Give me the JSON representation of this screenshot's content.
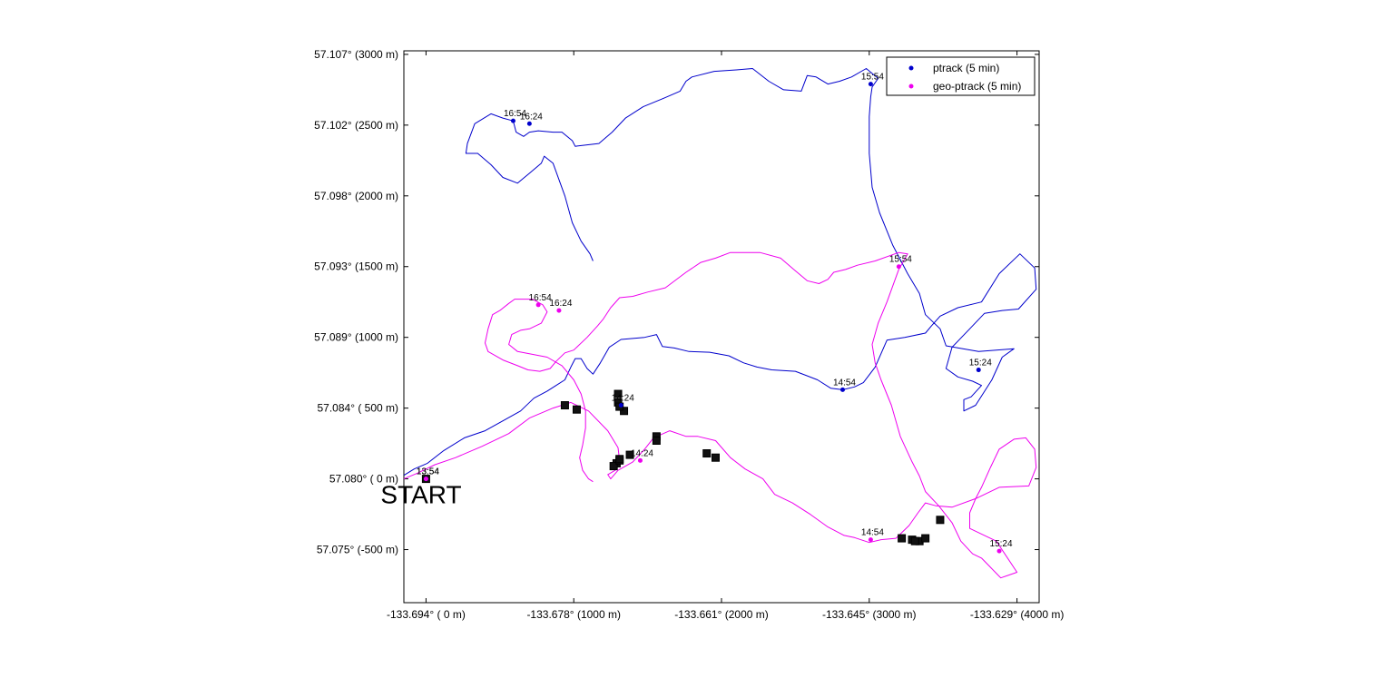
{
  "chart_data": {
    "type": "line",
    "xlim": [
      -150,
      4150
    ],
    "ylim": [
      -875,
      3025
    ],
    "x_ticks": [
      {
        "value": 0,
        "label": "-133.694° (   0 m)"
      },
      {
        "value": 1000,
        "label": "-133.678° (1000 m)"
      },
      {
        "value": 2000,
        "label": "-133.661° (2000 m)"
      },
      {
        "value": 3000,
        "label": "-133.645° (3000 m)"
      },
      {
        "value": 4000,
        "label": "-133.629° (4000 m)"
      }
    ],
    "y_ticks": [
      {
        "value": 3000,
        "label": "57.107° (3000 m)"
      },
      {
        "value": 2500,
        "label": "57.102° (2500 m)"
      },
      {
        "value": 2000,
        "label": "57.098° (2000 m)"
      },
      {
        "value": 1500,
        "label": "57.093° (1500 m)"
      },
      {
        "value": 1000,
        "label": "57.089° (1000 m)"
      },
      {
        "value": 500,
        "label": "57.084° ( 500 m)"
      },
      {
        "value": 0,
        "label": "57.080° (   0 m)"
      },
      {
        "value": -500,
        "label": "57.075° (-500 m)"
      }
    ],
    "legend_position": "top-right",
    "start_label": "START",
    "start_point": {
      "x": 0,
      "y": 0
    },
    "series": [
      {
        "name": "ptrack (5 min)",
        "color": "#0000cc",
        "path": [
          [
            -150,
            25
          ],
          [
            -80,
            70
          ],
          [
            10,
            110
          ],
          [
            120,
            200
          ],
          [
            260,
            290
          ],
          [
            400,
            340
          ],
          [
            520,
            410
          ],
          [
            640,
            480
          ],
          [
            730,
            570
          ],
          [
            820,
            620
          ],
          [
            880,
            660
          ],
          [
            940,
            700
          ],
          [
            980,
            790
          ],
          [
            1010,
            850
          ],
          [
            1050,
            850
          ],
          [
            1090,
            780
          ],
          [
            1130,
            740
          ],
          [
            1180,
            820
          ],
          [
            1240,
            930
          ],
          [
            1320,
            985
          ],
          [
            1480,
            1000
          ],
          [
            1560,
            1020
          ],
          [
            1600,
            935
          ],
          [
            1680,
            925
          ],
          [
            1780,
            900
          ],
          [
            1920,
            895
          ],
          [
            2050,
            870
          ],
          [
            2150,
            820
          ],
          [
            2240,
            790
          ],
          [
            2340,
            770
          ],
          [
            2500,
            760
          ],
          [
            2650,
            700
          ],
          [
            2740,
            640
          ],
          [
            2820,
            630
          ],
          [
            2900,
            650
          ],
          [
            2960,
            680
          ],
          [
            3040,
            790
          ],
          [
            3120,
            980
          ],
          [
            3240,
            1000
          ],
          [
            3380,
            1030
          ],
          [
            3420,
            1080
          ],
          [
            3480,
            1150
          ],
          [
            3600,
            1210
          ],
          [
            3760,
            1250
          ],
          [
            3880,
            1450
          ],
          [
            4020,
            1590
          ],
          [
            4120,
            1490
          ],
          [
            4130,
            1340
          ],
          [
            4010,
            1200
          ],
          [
            3900,
            1190
          ],
          [
            3780,
            1170
          ],
          [
            3680,
            1060
          ],
          [
            3560,
            930
          ],
          [
            3520,
            780
          ],
          [
            3600,
            720
          ],
          [
            3700,
            690
          ],
          [
            3760,
            660
          ],
          [
            3690,
            580
          ],
          [
            3640,
            560
          ],
          [
            3640,
            480
          ],
          [
            3720,
            520
          ],
          [
            3830,
            700
          ],
          [
            3900,
            860
          ],
          [
            3980,
            920
          ],
          [
            3740,
            900
          ],
          [
            3520,
            940
          ],
          [
            3480,
            1060
          ],
          [
            3380,
            1160
          ],
          [
            3340,
            1310
          ],
          [
            3260,
            1450
          ],
          [
            3160,
            1650
          ],
          [
            3070,
            1880
          ],
          [
            3020,
            2060
          ],
          [
            3000,
            2300
          ],
          [
            3000,
            2560
          ],
          [
            3010,
            2700
          ],
          [
            3020,
            2770
          ],
          [
            3060,
            2830
          ],
          [
            2980,
            2900
          ],
          [
            2880,
            2840
          ],
          [
            2800,
            2810
          ],
          [
            2720,
            2790
          ],
          [
            2640,
            2840
          ],
          [
            2580,
            2850
          ],
          [
            2540,
            2740
          ],
          [
            2420,
            2750
          ],
          [
            2320,
            2810
          ],
          [
            2210,
            2900
          ],
          [
            2100,
            2890
          ],
          [
            1950,
            2880
          ],
          [
            1800,
            2840
          ],
          [
            1760,
            2810
          ],
          [
            1720,
            2740
          ],
          [
            1610,
            2690
          ],
          [
            1470,
            2630
          ],
          [
            1350,
            2550
          ],
          [
            1260,
            2450
          ],
          [
            1170,
            2370
          ],
          [
            1010,
            2350
          ],
          [
            990,
            2390
          ],
          [
            920,
            2450
          ],
          [
            860,
            2450
          ],
          [
            760,
            2460
          ],
          [
            700,
            2450
          ],
          [
            660,
            2420
          ],
          [
            610,
            2450
          ],
          [
            590,
            2530
          ],
          [
            520,
            2550
          ],
          [
            440,
            2580
          ],
          [
            330,
            2510
          ],
          [
            280,
            2370
          ],
          [
            270,
            2300
          ],
          [
            350,
            2300
          ],
          [
            440,
            2220
          ],
          [
            520,
            2130
          ],
          [
            620,
            2090
          ],
          [
            700,
            2160
          ],
          [
            780,
            2230
          ],
          [
            800,
            2280
          ],
          [
            860,
            2230
          ],
          [
            940,
            2000
          ],
          [
            990,
            1810
          ],
          [
            1050,
            1680
          ],
          [
            1110,
            1590
          ],
          [
            1130,
            1540
          ]
        ],
        "time_markers": [
          {
            "label": "13:54",
            "x": 0,
            "y": 0
          },
          {
            "label": "14:24",
            "x": 1320,
            "y": 520
          },
          {
            "label": "14:54",
            "x": 2820,
            "y": 630
          },
          {
            "label": "15:24",
            "x": 3740,
            "y": 770
          },
          {
            "label": "15:54",
            "x": 3010,
            "y": 2790
          },
          {
            "label": "16:54",
            "x": 590,
            "y": 2530
          },
          {
            "label": "16:24",
            "x": 700,
            "y": 2510
          }
        ]
      },
      {
        "name": "geo-ptrack (5 min)",
        "color": "#ee00ee",
        "path": [
          [
            -150,
            0
          ],
          [
            -60,
            40
          ],
          [
            60,
            100
          ],
          [
            200,
            150
          ],
          [
            380,
            230
          ],
          [
            560,
            320
          ],
          [
            700,
            430
          ],
          [
            860,
            500
          ],
          [
            980,
            540
          ],
          [
            1100,
            480
          ],
          [
            1230,
            340
          ],
          [
            1300,
            220
          ],
          [
            1310,
            130
          ],
          [
            1280,
            60
          ],
          [
            1230,
            30
          ],
          [
            1250,
            0
          ],
          [
            1300,
            60
          ],
          [
            1400,
            120
          ],
          [
            1480,
            210
          ],
          [
            1540,
            290
          ],
          [
            1650,
            340
          ],
          [
            1760,
            300
          ],
          [
            1840,
            300
          ],
          [
            1960,
            270
          ],
          [
            2060,
            150
          ],
          [
            2160,
            70
          ],
          [
            2280,
            0
          ],
          [
            2360,
            -110
          ],
          [
            2480,
            -170
          ],
          [
            2600,
            -250
          ],
          [
            2720,
            -340
          ],
          [
            2830,
            -400
          ],
          [
            2900,
            -415
          ],
          [
            3000,
            -450
          ],
          [
            3080,
            -430
          ],
          [
            3180,
            -420
          ],
          [
            3270,
            -330
          ],
          [
            3330,
            -240
          ],
          [
            3380,
            -170
          ],
          [
            3450,
            -190
          ],
          [
            3560,
            -200
          ],
          [
            3720,
            -140
          ],
          [
            3880,
            -60
          ],
          [
            4080,
            -50
          ],
          [
            4130,
            80
          ],
          [
            4120,
            210
          ],
          [
            4060,
            290
          ],
          [
            3980,
            280
          ],
          [
            3880,
            210
          ],
          [
            3820,
            80
          ],
          [
            3760,
            -60
          ],
          [
            3720,
            -140
          ],
          [
            3680,
            -240
          ],
          [
            3680,
            -350
          ],
          [
            3860,
            -440
          ],
          [
            4000,
            -660
          ],
          [
            3890,
            -700
          ],
          [
            3760,
            -560
          ],
          [
            3700,
            -530
          ],
          [
            3620,
            -440
          ],
          [
            3560,
            -310
          ],
          [
            3470,
            -190
          ],
          [
            3380,
            -90
          ],
          [
            3340,
            20
          ],
          [
            3290,
            120
          ],
          [
            3210,
            300
          ],
          [
            3150,
            520
          ],
          [
            3080,
            700
          ],
          [
            3040,
            820
          ],
          [
            3020,
            950
          ],
          [
            3060,
            1100
          ],
          [
            3120,
            1250
          ],
          [
            3200,
            1480
          ],
          [
            3260,
            1590
          ],
          [
            3200,
            1600
          ],
          [
            3040,
            1540
          ],
          [
            2920,
            1510
          ],
          [
            2840,
            1480
          ],
          [
            2760,
            1460
          ],
          [
            2720,
            1410
          ],
          [
            2660,
            1380
          ],
          [
            2580,
            1400
          ],
          [
            2500,
            1470
          ],
          [
            2400,
            1560
          ],
          [
            2260,
            1600
          ],
          [
            2160,
            1600
          ],
          [
            2060,
            1600
          ],
          [
            1960,
            1560
          ],
          [
            1860,
            1530
          ],
          [
            1760,
            1460
          ],
          [
            1620,
            1350
          ],
          [
            1500,
            1320
          ],
          [
            1400,
            1290
          ],
          [
            1310,
            1280
          ],
          [
            1250,
            1210
          ],
          [
            1200,
            1130
          ],
          [
            1160,
            1080
          ],
          [
            1090,
            1000
          ],
          [
            1000,
            910
          ],
          [
            940,
            890
          ],
          [
            880,
            830
          ],
          [
            840,
            780
          ],
          [
            770,
            760
          ],
          [
            690,
            770
          ],
          [
            620,
            800
          ],
          [
            520,
            840
          ],
          [
            420,
            900
          ],
          [
            400,
            960
          ],
          [
            420,
            1060
          ],
          [
            450,
            1160
          ],
          [
            500,
            1190
          ],
          [
            560,
            1240
          ],
          [
            600,
            1270
          ],
          [
            720,
            1270
          ],
          [
            790,
            1230
          ],
          [
            820,
            1180
          ],
          [
            780,
            1100
          ],
          [
            700,
            1060
          ],
          [
            640,
            1050
          ],
          [
            580,
            1020
          ],
          [
            560,
            950
          ],
          [
            620,
            900
          ],
          [
            720,
            880
          ],
          [
            820,
            860
          ],
          [
            920,
            800
          ],
          [
            1000,
            700
          ],
          [
            1050,
            600
          ],
          [
            1080,
            480
          ],
          [
            1080,
            360
          ],
          [
            1060,
            240
          ],
          [
            1040,
            150
          ],
          [
            1060,
            60
          ],
          [
            1100,
            0
          ],
          [
            1130,
            -20
          ]
        ],
        "time_markers": [
          {
            "label": "13:54",
            "x": 0,
            "y": 0
          },
          {
            "label": "14:24",
            "x": 1450,
            "y": 130
          },
          {
            "label": "14:54",
            "x": 3010,
            "y": -430
          },
          {
            "label": "15:24",
            "x": 3880,
            "y": -510
          },
          {
            "label": "15:54",
            "x": 3200,
            "y": 1500
          },
          {
            "label": "16:54",
            "x": 760,
            "y": 1230
          },
          {
            "label": "16:24",
            "x": 900,
            "y": 1190
          }
        ]
      }
    ],
    "black_squares": [
      [
        0,
        0
      ],
      [
        940,
        520
      ],
      [
        1020,
        490
      ],
      [
        1300,
        600
      ],
      [
        1300,
        540
      ],
      [
        1340,
        480
      ],
      [
        1310,
        510
      ],
      [
        1290,
        110
      ],
      [
        1270,
        90
      ],
      [
        1310,
        130
      ],
      [
        1380,
        170
      ],
      [
        1310,
        140
      ],
      [
        1560,
        300
      ],
      [
        1560,
        270
      ],
      [
        1900,
        180
      ],
      [
        1960,
        150
      ],
      [
        3220,
        -420
      ],
      [
        3290,
        -430
      ],
      [
        3340,
        -440
      ],
      [
        3380,
        -420
      ],
      [
        3480,
        -290
      ],
      [
        3310,
        -440
      ]
    ]
  }
}
